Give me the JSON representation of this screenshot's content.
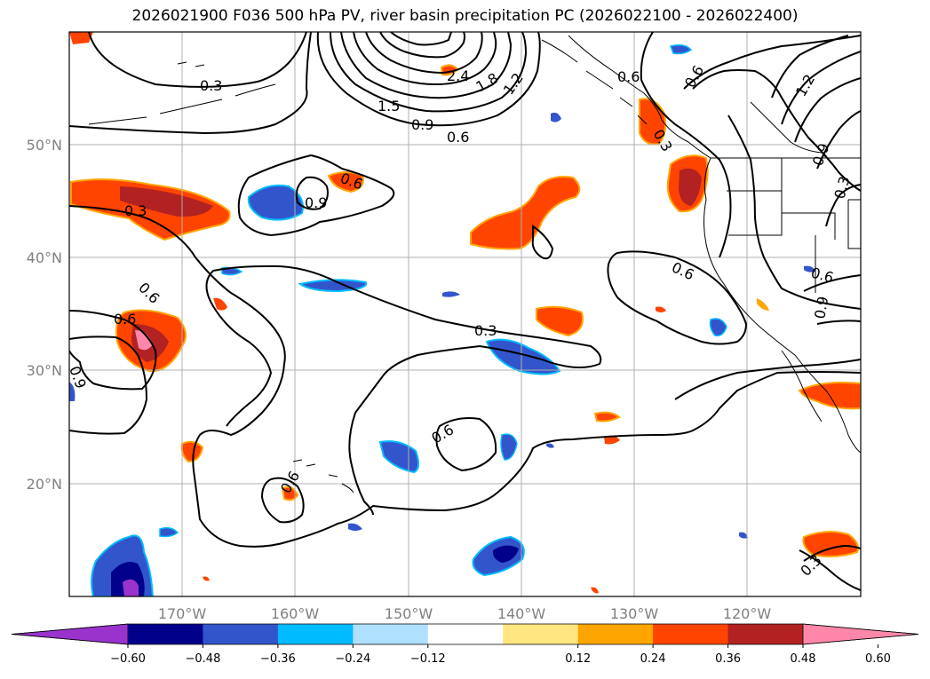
{
  "title": "2026021900 F036 500 hPa PV, river basin precipitation PC (2026022100 - 2026022400)",
  "lat_labels": [
    "50°N",
    "40°N",
    "30°N",
    "20°N"
  ],
  "lon_labels": [
    "170°W",
    "160°W",
    "150°W",
    "140°W",
    "130°W",
    "120°W"
  ],
  "colorbar": {
    "ticks": [
      "−0.60",
      "−0.48",
      "−0.36",
      "−0.24",
      "−0.12",
      "0.12",
      "0.24",
      "0.36",
      "0.48",
      "0.60"
    ],
    "colors": [
      "#9933cc",
      "#00008b",
      "#3355cc",
      "#00bbff",
      "#b0e0ff",
      "#ffffff",
      "#ffe680",
      "#ffa500",
      "#ff4400",
      "#b22222",
      "#ff88aa"
    ]
  },
  "contour_labels": [
    "0.3",
    "2.4",
    "1.8",
    "1.2",
    "1.5",
    "0.9",
    "0.6",
    "0.6",
    "0.6",
    "0.9",
    "0.3",
    "0.6",
    "0.6",
    "0.6",
    "0.9",
    "0.3",
    "0.6",
    "0.6",
    "0.3",
    "1.2",
    "0.9",
    "0.3",
    "0.6",
    "0.6",
    "0.9",
    "0.3"
  ]
}
